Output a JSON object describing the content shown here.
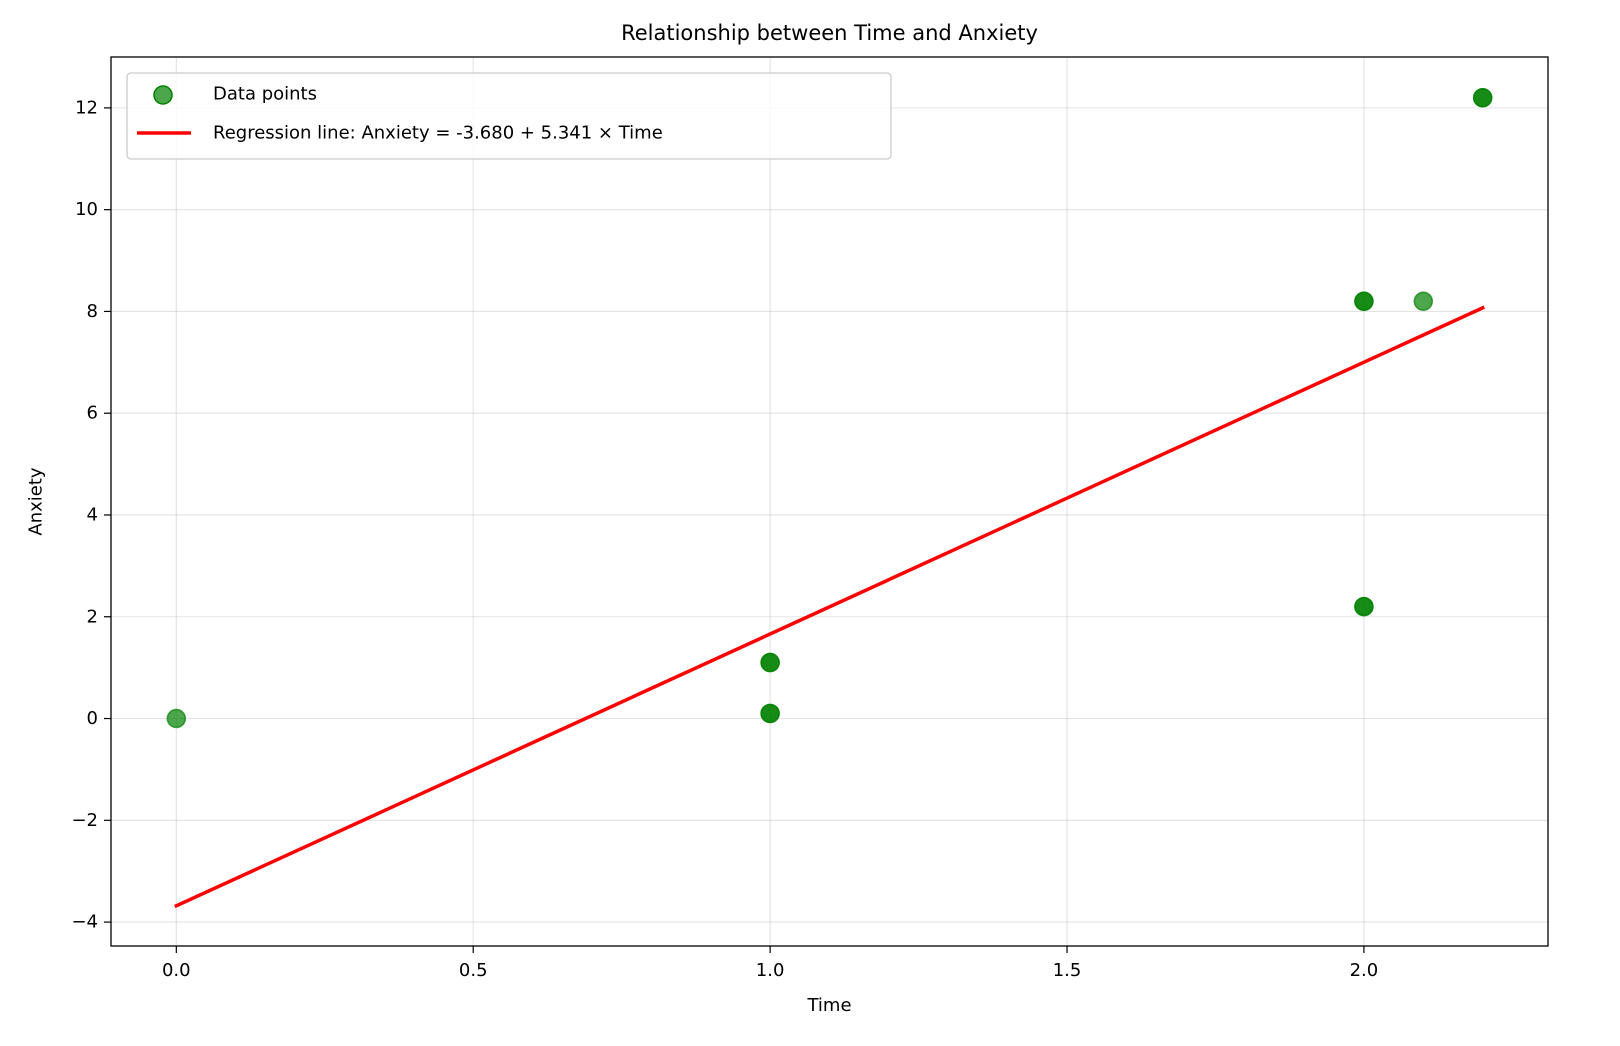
{
  "chart_data": {
    "type": "scatter",
    "title": "Relationship between Time and Anxiety",
    "xlabel": "Time",
    "ylabel": "Anxiety",
    "xlim": [
      -0.11,
      2.31
    ],
    "ylim": [
      -4.47,
      13.0
    ],
    "xticks": [
      0.0,
      0.5,
      1.0,
      1.5,
      2.0
    ],
    "xtick_labels": [
      "0.0",
      "0.5",
      "1.0",
      "1.5",
      "2.0"
    ],
    "yticks": [
      -4,
      -2,
      0,
      2,
      4,
      6,
      8,
      10,
      12
    ],
    "ytick_labels": [
      "−4",
      "−2",
      "0",
      "2",
      "4",
      "6",
      "8",
      "10",
      "12"
    ],
    "grid": true,
    "legend_position": "top-left",
    "series": [
      {
        "name": "Data points",
        "kind": "scatter",
        "color": "#008000",
        "points": [
          {
            "x": 0.0,
            "y": 0.0
          },
          {
            "x": 1.0,
            "y": 1.1
          },
          {
            "x": 1.0,
            "y": 1.1
          },
          {
            "x": 1.0,
            "y": 0.1
          },
          {
            "x": 1.0,
            "y": 0.1
          },
          {
            "x": 2.0,
            "y": 8.2
          },
          {
            "x": 2.0,
            "y": 8.2
          },
          {
            "x": 2.0,
            "y": 2.2
          },
          {
            "x": 2.0,
            "y": 2.2
          },
          {
            "x": 2.1,
            "y": 8.2
          },
          {
            "x": 2.2,
            "y": 12.2
          },
          {
            "x": 2.2,
            "y": 12.2
          }
        ]
      },
      {
        "name": "Regression line: Anxiety = -3.680 + 5.341 × Time",
        "kind": "line",
        "color": "#ff0000",
        "intercept": -3.68,
        "slope": 5.341,
        "x_range": [
          0.0,
          2.2
        ]
      }
    ]
  }
}
